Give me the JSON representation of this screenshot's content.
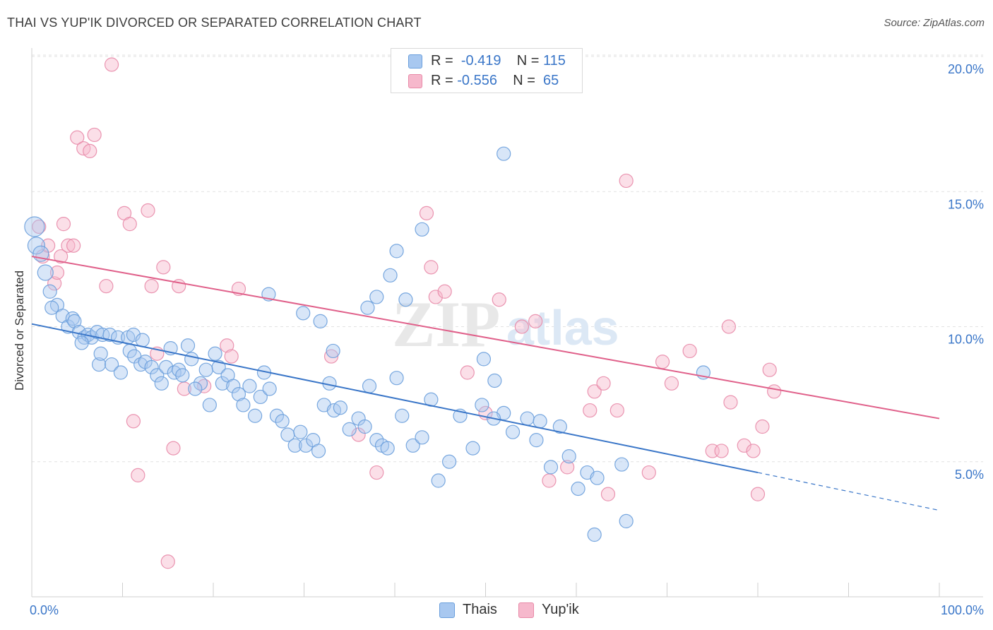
{
  "header": {
    "title": "THAI VS YUP'IK DIVORCED OR SEPARATED CORRELATION CHART",
    "source": "Source: ZipAtlas.com"
  },
  "legend": {
    "rows": [
      {
        "r_label": "R =",
        "r_value": "-0.419",
        "n_label": "N =",
        "n_value": "115",
        "color": "#a8c8f0"
      },
      {
        "r_label": "R =",
        "r_value": "-0.556",
        "n_label": "N =",
        "n_value": "65",
        "color": "#f6b8cc"
      }
    ]
  },
  "bottom_legend": [
    {
      "label": "Thais",
      "color": "#a8c8f0"
    },
    {
      "label": "Yup'ik",
      "color": "#f6b8cc"
    }
  ],
  "watermark": {
    "zip": "ZIP",
    "atlas": "atlas"
  },
  "chart_data": {
    "type": "scatter",
    "title": "THAI VS YUP'IK DIVORCED OR SEPARATED CORRELATION CHART",
    "ylabel": "Divorced or Separated",
    "xlabel": "",
    "xlim": [
      0,
      100
    ],
    "ylim": [
      0,
      20.8
    ],
    "x_tick_labels": [
      "0.0%",
      "100.0%"
    ],
    "y_ticks": [
      5,
      10,
      15,
      20
    ],
    "y_tick_labels": [
      "5.0%",
      "10.0%",
      "15.0%",
      "20.0%"
    ],
    "grid": "horizontal dashed",
    "colors": {
      "thais": "#3a76c8",
      "yupik": "#e0608a",
      "axis_text": "#3a76c8"
    },
    "series": [
      {
        "name": "Thais",
        "color": "#a8c8f0",
        "stroke": "#6a9fdc",
        "trend": {
          "x": [
            0,
            80
          ],
          "y": [
            10.1,
            4.6
          ],
          "dashed_to": [
            100,
            3.2
          ]
        },
        "points": [
          [
            0.3,
            13.7
          ],
          [
            0.5,
            13.0
          ],
          [
            1.0,
            12.7
          ],
          [
            1.5,
            12.0
          ],
          [
            2.0,
            11.3
          ],
          [
            2.8,
            10.8
          ],
          [
            2.2,
            10.7
          ],
          [
            3.4,
            10.4
          ],
          [
            4.0,
            10.0
          ],
          [
            4.5,
            10.3
          ],
          [
            4.7,
            10.2
          ],
          [
            5.2,
            9.8
          ],
          [
            5.8,
            9.6
          ],
          [
            6.2,
            9.7
          ],
          [
            6.6,
            9.6
          ],
          [
            7.2,
            9.8
          ],
          [
            5.5,
            9.4
          ],
          [
            7.8,
            9.7
          ],
          [
            8.6,
            9.7
          ],
          [
            9.5,
            9.6
          ],
          [
            10.6,
            9.6
          ],
          [
            11.2,
            9.7
          ],
          [
            12.2,
            9.5
          ],
          [
            7.4,
            8.6
          ],
          [
            7.6,
            9.0
          ],
          [
            8.8,
            8.6
          ],
          [
            9.8,
            8.3
          ],
          [
            10.8,
            9.1
          ],
          [
            11.3,
            8.9
          ],
          [
            12.0,
            8.6
          ],
          [
            12.5,
            8.7
          ],
          [
            13.2,
            8.5
          ],
          [
            13.8,
            8.2
          ],
          [
            14.3,
            7.9
          ],
          [
            14.8,
            8.5
          ],
          [
            15.3,
            9.2
          ],
          [
            15.7,
            8.3
          ],
          [
            16.2,
            8.4
          ],
          [
            16.6,
            8.2
          ],
          [
            17.2,
            9.3
          ],
          [
            17.6,
            8.8
          ],
          [
            18.6,
            7.9
          ],
          [
            18.0,
            7.7
          ],
          [
            19.2,
            8.4
          ],
          [
            19.6,
            7.1
          ],
          [
            20.2,
            9.0
          ],
          [
            20.6,
            8.5
          ],
          [
            21.0,
            7.9
          ],
          [
            21.6,
            8.2
          ],
          [
            22.2,
            7.8
          ],
          [
            22.8,
            7.5
          ],
          [
            23.3,
            7.1
          ],
          [
            24.0,
            7.8
          ],
          [
            24.6,
            6.7
          ],
          [
            25.2,
            7.4
          ],
          [
            25.6,
            8.3
          ],
          [
            26.2,
            7.7
          ],
          [
            27.0,
            6.7
          ],
          [
            27.6,
            6.5
          ],
          [
            28.2,
            6.0
          ],
          [
            29.0,
            5.6
          ],
          [
            29.6,
            6.1
          ],
          [
            30.2,
            5.6
          ],
          [
            31.0,
            5.8
          ],
          [
            31.6,
            5.4
          ],
          [
            32.2,
            7.1
          ],
          [
            32.8,
            7.9
          ],
          [
            33.3,
            6.9
          ],
          [
            34.0,
            7.0
          ],
          [
            35.0,
            6.2
          ],
          [
            36.0,
            6.6
          ],
          [
            36.7,
            6.3
          ],
          [
            37.2,
            7.8
          ],
          [
            38.0,
            5.8
          ],
          [
            38.6,
            5.6
          ],
          [
            39.2,
            5.5
          ],
          [
            40.2,
            8.1
          ],
          [
            40.8,
            6.7
          ],
          [
            42.0,
            5.6
          ],
          [
            43.0,
            5.9
          ],
          [
            44.0,
            7.3
          ],
          [
            44.8,
            4.3
          ],
          [
            46.0,
            5.0
          ],
          [
            47.2,
            6.7
          ],
          [
            48.6,
            5.5
          ],
          [
            49.6,
            7.1
          ],
          [
            51.0,
            8.0
          ],
          [
            52.0,
            6.8
          ],
          [
            53.0,
            6.1
          ],
          [
            54.6,
            6.6
          ],
          [
            55.6,
            5.8
          ],
          [
            56.0,
            6.5
          ],
          [
            57.2,
            4.8
          ],
          [
            58.2,
            6.3
          ],
          [
            59.2,
            5.2
          ],
          [
            60.2,
            4.0
          ],
          [
            61.2,
            4.6
          ],
          [
            62.3,
            4.4
          ],
          [
            40.2,
            12.8
          ],
          [
            39.5,
            11.9
          ],
          [
            52.0,
            16.4
          ],
          [
            65.0,
            4.9
          ],
          [
            74.0,
            8.3
          ],
          [
            65.5,
            2.8
          ],
          [
            26.1,
            11.2
          ],
          [
            29.9,
            10.5
          ],
          [
            31.8,
            10.2
          ],
          [
            38.0,
            11.1
          ],
          [
            41.2,
            11.0
          ],
          [
            43.0,
            13.6
          ],
          [
            49.8,
            8.8
          ],
          [
            33.2,
            9.1
          ],
          [
            37.0,
            10.7
          ],
          [
            50.9,
            6.6
          ],
          [
            62.0,
            2.3
          ]
        ]
      },
      {
        "name": "Yup'ik",
        "color": "#f6b8cc",
        "stroke": "#e88aa8",
        "trend": {
          "x": [
            0,
            100
          ],
          "y": [
            12.6,
            6.6
          ]
        },
        "points": [
          [
            0.8,
            13.7
          ],
          [
            1.2,
            12.6
          ],
          [
            1.8,
            13.0
          ],
          [
            2.5,
            11.6
          ],
          [
            2.8,
            12.0
          ],
          [
            3.2,
            12.6
          ],
          [
            3.5,
            13.8
          ],
          [
            4.0,
            13.0
          ],
          [
            4.6,
            13.0
          ],
          [
            5.0,
            17.0
          ],
          [
            5.7,
            16.6
          ],
          [
            6.4,
            16.5
          ],
          [
            6.9,
            17.1
          ],
          [
            8.2,
            11.5
          ],
          [
            8.8,
            19.7
          ],
          [
            10.2,
            14.2
          ],
          [
            10.8,
            13.8
          ],
          [
            11.2,
            6.5
          ],
          [
            11.7,
            4.5
          ],
          [
            12.8,
            14.3
          ],
          [
            13.2,
            11.5
          ],
          [
            13.8,
            9.0
          ],
          [
            14.5,
            12.2
          ],
          [
            15.0,
            1.3
          ],
          [
            15.6,
            5.5
          ],
          [
            16.2,
            11.5
          ],
          [
            16.8,
            7.7
          ],
          [
            19.0,
            7.8
          ],
          [
            21.5,
            9.3
          ],
          [
            22.0,
            8.9
          ],
          [
            22.8,
            11.4
          ],
          [
            33.0,
            8.9
          ],
          [
            36.0,
            6.0
          ],
          [
            38.0,
            4.6
          ],
          [
            43.5,
            14.2
          ],
          [
            44.0,
            12.2
          ],
          [
            44.5,
            11.1
          ],
          [
            45.5,
            11.3
          ],
          [
            48.0,
            8.3
          ],
          [
            50.0,
            6.8
          ],
          [
            51.5,
            11.0
          ],
          [
            54.0,
            10.0
          ],
          [
            55.5,
            10.2
          ],
          [
            57.0,
            4.3
          ],
          [
            59.0,
            4.8
          ],
          [
            61.5,
            6.9
          ],
          [
            62.0,
            7.6
          ],
          [
            63.5,
            3.8
          ],
          [
            63.0,
            7.9
          ],
          [
            64.5,
            6.9
          ],
          [
            65.5,
            15.4
          ],
          [
            68.0,
            4.6
          ],
          [
            69.5,
            8.7
          ],
          [
            70.5,
            7.9
          ],
          [
            72.5,
            9.1
          ],
          [
            75.0,
            5.4
          ],
          [
            76.0,
            5.4
          ],
          [
            76.8,
            10.0
          ],
          [
            77.0,
            7.2
          ],
          [
            78.5,
            5.6
          ],
          [
            79.5,
            5.4
          ],
          [
            80.0,
            3.8
          ],
          [
            80.5,
            6.3
          ],
          [
            81.3,
            8.4
          ],
          [
            81.8,
            7.6
          ]
        ]
      }
    ]
  }
}
